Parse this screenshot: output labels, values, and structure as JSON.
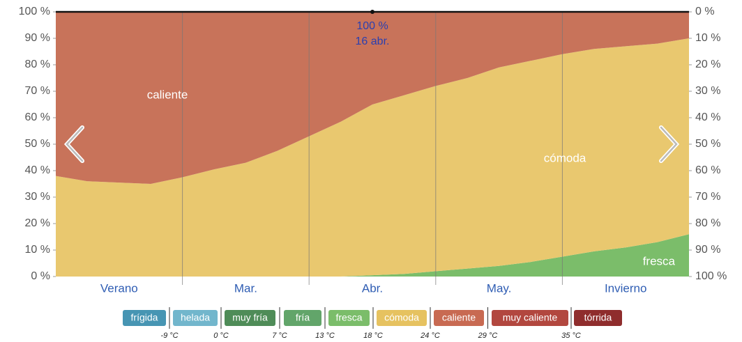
{
  "chart_data": {
    "type": "area",
    "stacked": "percent",
    "categories": [
      null,
      null,
      "Verano",
      null,
      null,
      null,
      "Mar.",
      null,
      null,
      null,
      "Abr.",
      null,
      null,
      null,
      "May.",
      null,
      null,
      null,
      "Invierno",
      null,
      null
    ],
    "series": [
      {
        "name": "fresca",
        "color": "#7bbd6a",
        "values": [
          0,
          0,
          0,
          0,
          0,
          0,
          0,
          0,
          0,
          0,
          0.5,
          1,
          2,
          3,
          4,
          5.5,
          7.5,
          9.5,
          11,
          13,
          16
        ]
      },
      {
        "name": "cómoda",
        "color": "#e9c86f",
        "values": [
          38,
          36,
          35.5,
          35,
          37.5,
          40.5,
          43,
          47.5,
          53,
          58.5,
          64.5,
          67.5,
          70,
          72,
          75,
          76,
          76.5,
          76.5,
          76,
          75,
          74
        ]
      },
      {
        "name": "caliente",
        "color": "#c8735a",
        "values": [
          62,
          64,
          64.5,
          65,
          62.5,
          59.5,
          57,
          52.5,
          47,
          41.5,
          35,
          31.5,
          28,
          25,
          21,
          18.5,
          16,
          14,
          13,
          12,
          10
        ]
      }
    ],
    "ylim": [
      0,
      100
    ],
    "yticks": [
      {
        "value": 0,
        "label": "0 %"
      },
      {
        "value": 10,
        "label": "10 %"
      },
      {
        "value": 20,
        "label": "20 %"
      },
      {
        "value": 30,
        "label": "30 %"
      },
      {
        "value": 40,
        "label": "40 %"
      },
      {
        "value": 50,
        "label": "50 %"
      },
      {
        "value": 60,
        "label": "60 %"
      },
      {
        "value": 70,
        "label": "70 %"
      },
      {
        "value": 80,
        "label": "80 %"
      },
      {
        "value": 90,
        "label": "90 %"
      },
      {
        "value": 100,
        "label": "100 %"
      }
    ],
    "y2lim": [
      100,
      0
    ],
    "y2ticks": [
      {
        "value": 0,
        "label": "0 %"
      },
      {
        "value": 10,
        "label": "10 %"
      },
      {
        "value": 20,
        "label": "20 %"
      },
      {
        "value": 30,
        "label": "30 %"
      },
      {
        "value": 40,
        "label": "40 %"
      },
      {
        "value": 50,
        "label": "50 %"
      },
      {
        "value": 60,
        "label": "60 %"
      },
      {
        "value": 70,
        "label": "70 %"
      },
      {
        "value": 80,
        "label": "80 %"
      },
      {
        "value": 90,
        "label": "90 %"
      },
      {
        "value": 100,
        "label": "100 %"
      }
    ],
    "hover": {
      "date": "16 abr.",
      "value": 100,
      "value_label": "100 %"
    },
    "legend": {
      "items": [
        {
          "name": "frígida",
          "color": "#4795b3"
        },
        {
          "name": "helada",
          "color": "#72b6cc"
        },
        {
          "name": "muy fría",
          "color": "#4f8c58"
        },
        {
          "name": "fría",
          "color": "#62a56a"
        },
        {
          "name": "fresca",
          "color": "#7bbd6a"
        },
        {
          "name": "cómoda",
          "color": "#e6c260"
        },
        {
          "name": "caliente",
          "color": "#c86a52"
        },
        {
          "name": "muy caliente",
          "color": "#b2473f"
        },
        {
          "name": "tórrida",
          "color": "#8f2d2d"
        }
      ],
      "thresholds": [
        {
          "value": -9,
          "label": "-9 °C"
        },
        {
          "value": 0,
          "label": "0 °C"
        },
        {
          "value": 7,
          "label": "7 °C"
        },
        {
          "value": 13,
          "label": "13 °C"
        },
        {
          "value": 18,
          "label": "18 °C"
        },
        {
          "value": 24,
          "label": "24 °C"
        },
        {
          "value": 29,
          "label": "29 °C"
        },
        {
          "value": 35,
          "label": "35 °C"
        }
      ]
    }
  }
}
